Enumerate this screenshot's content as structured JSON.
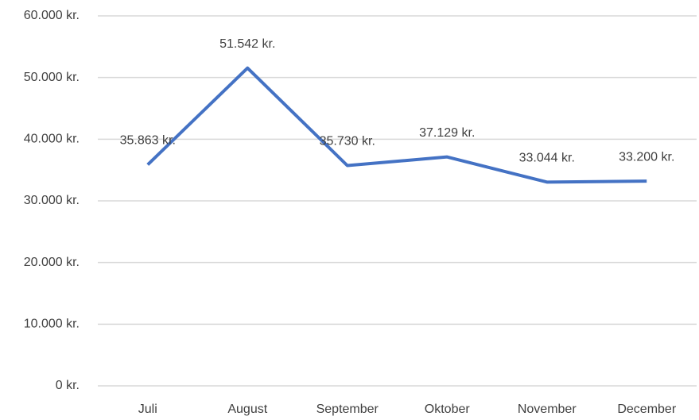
{
  "chart_data": {
    "type": "line",
    "categories": [
      "Juli",
      "August",
      "September",
      "Oktober",
      "November",
      "December"
    ],
    "series": [
      {
        "color": "#4472c4",
        "values": [
          35863,
          51542,
          35730,
          37129,
          33044,
          33200
        ],
        "value_labels": [
          "35.863 kr.",
          "51.542 kr.",
          "35.730 kr.",
          "37.129 kr.",
          "33.044 kr.",
          "33.200 kr."
        ]
      }
    ],
    "ylim": [
      0,
      60000
    ],
    "yticks": [
      {
        "value": 0,
        "label": "0 kr."
      },
      {
        "value": 10000,
        "label": "10.000 kr."
      },
      {
        "value": 20000,
        "label": "20.000 kr."
      },
      {
        "value": 30000,
        "label": "30.000 kr."
      },
      {
        "value": 40000,
        "label": "40.000 kr."
      },
      {
        "value": 50000,
        "label": "50.000 kr."
      },
      {
        "value": 60000,
        "label": "60.000 kr."
      }
    ],
    "grid": true
  }
}
